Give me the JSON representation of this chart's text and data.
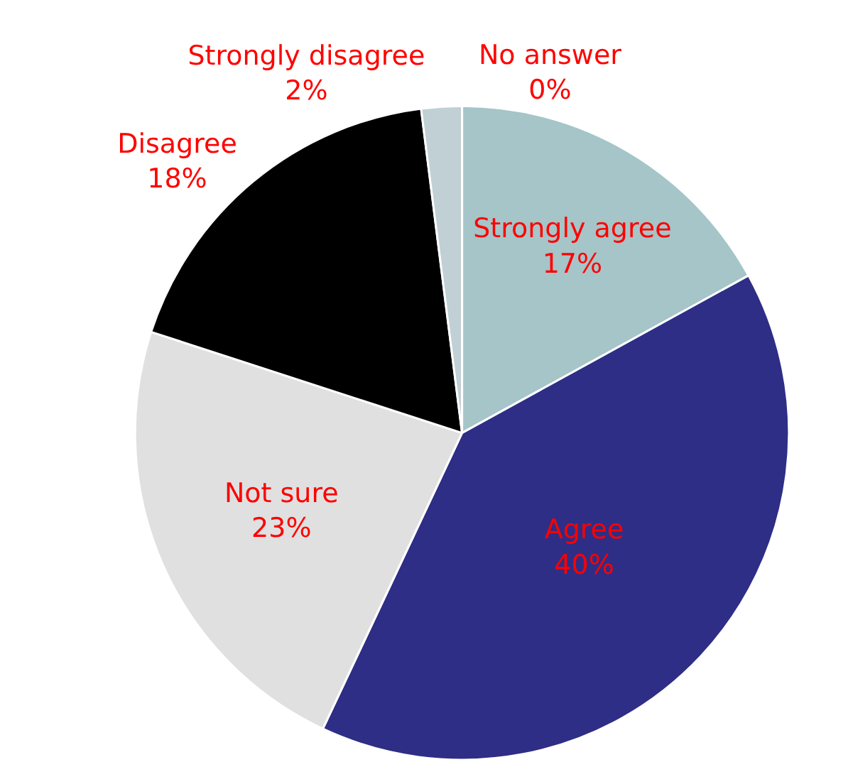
{
  "chart_data": {
    "type": "pie",
    "categories": [
      "Strongly agree",
      "Agree",
      "Not sure",
      "Disagree",
      "Strongly disagree",
      "No answer"
    ],
    "values": [
      17,
      40,
      23,
      18,
      2,
      0
    ],
    "value_labels": [
      "17%",
      "40%",
      "23%",
      "18%",
      "2%",
      "0%"
    ],
    "colors": [
      "#a5c5c8",
      "#2e2e86",
      "#e0e0e0",
      "#000000",
      "#c0d0d4",
      "#2e2e86"
    ],
    "legend": false
  }
}
